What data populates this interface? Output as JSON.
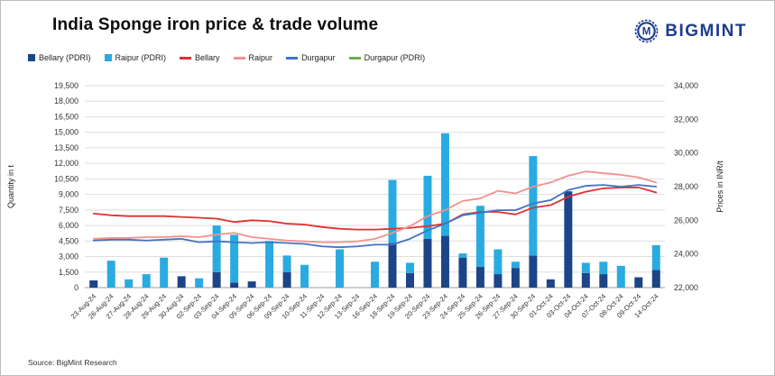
{
  "header": {
    "title": "India Sponge iron price & trade volume",
    "logo_text": "BIGMINT"
  },
  "legend": [
    {
      "label": "Bellary (PDRI)",
      "color": "#1c4587",
      "type": "bar"
    },
    {
      "label": "Raipur (PDRI)",
      "color": "#29abe2",
      "type": "bar"
    },
    {
      "label": "Bellary",
      "color": "#e03030",
      "type": "line"
    },
    {
      "label": "Raipur",
      "color": "#f2918c",
      "type": "line"
    },
    {
      "label": "Durgapur",
      "color": "#4472c4",
      "type": "line"
    },
    {
      "label": "Durgapur (PDRI)",
      "color": "#70ad47",
      "type": "line"
    }
  ],
  "source": "Source: BigMint Research",
  "chart_data": {
    "type": "combo: stacked bar (quantity) + line (prices)",
    "title": "India Sponge iron price & trade volume",
    "categories": [
      "23-Aug-24",
      "26-Aug-24",
      "27-Aug-24",
      "28-Aug-24",
      "29-Aug-24",
      "30-Aug-24",
      "02-Sep-24",
      "03-Sep-24",
      "04-Sep-24",
      "05-Sep-24",
      "06-Sep-24",
      "09-Sep-24",
      "10-Sep-24",
      "11-Sep-24",
      "12-Sep-24",
      "13-Sep-24",
      "16-Sep-24",
      "18-Sep-24",
      "19-Sep-24",
      "20-Sep-24",
      "23-Sep-24",
      "24-Sep-24",
      "25-Sep-24",
      "26-Sep-24",
      "27-Sep-24",
      "30-Sep-24",
      "01-Oct-24",
      "03-Oct-24",
      "04-Oct-24",
      "07-Oct-24",
      "08-Oct-24",
      "09-Oct-24",
      "14-Oct-24"
    ],
    "bar_series": [
      {
        "name": "Bellary (PDRI)",
        "color": "#1c4587",
        "values": [
          700,
          0,
          0,
          0,
          0,
          1100,
          0,
          1500,
          500,
          600,
          0,
          1500,
          0,
          0,
          0,
          0,
          0,
          4300,
          1400,
          4700,
          5000,
          2900,
          2000,
          1300,
          1900,
          3100,
          800,
          9300,
          1400,
          1300,
          0,
          1000,
          1700
        ]
      },
      {
        "name": "Raipur (PDRI)",
        "color": "#29abe2",
        "values": [
          0,
          2600,
          800,
          1300,
          2900,
          0,
          900,
          4500,
          4600,
          0,
          4500,
          1600,
          2200,
          0,
          3700,
          0,
          2500,
          6100,
          1000,
          6100,
          9900,
          400,
          5900,
          2400,
          600,
          9600,
          0,
          0,
          1000,
          1200,
          2100,
          0,
          2400
        ]
      }
    ],
    "line_series": [
      {
        "name": "Bellary",
        "color": "#e03030",
        "values": [
          26400,
          26300,
          26250,
          26250,
          26250,
          26200,
          26150,
          26100,
          25900,
          26000,
          25950,
          25800,
          25750,
          25600,
          25500,
          25450,
          25450,
          25500,
          25550,
          25650,
          25800,
          26350,
          26500,
          26500,
          26350,
          26750,
          26900,
          27400,
          27700,
          27900,
          27950,
          27950,
          27650
        ]
      },
      {
        "name": "Raipur",
        "color": "#f2918c",
        "values": [
          24900,
          24950,
          24950,
          25000,
          25000,
          25050,
          25000,
          25150,
          25250,
          25000,
          24900,
          24800,
          24750,
          24700,
          24700,
          24750,
          24900,
          25250,
          25650,
          26250,
          26600,
          27150,
          27300,
          27750,
          27600,
          28000,
          28250,
          28650,
          28900,
          28800,
          28700,
          28550,
          28250
        ]
      },
      {
        "name": "Durgapur",
        "color": "#4472c4",
        "values": [
          24800,
          24850,
          24850,
          24800,
          24850,
          24900,
          24700,
          24750,
          24700,
          24650,
          24700,
          24650,
          24600,
          24450,
          24400,
          24450,
          24550,
          24550,
          24900,
          25400,
          25800,
          26300,
          26450,
          26600,
          26600,
          27000,
          27200,
          27800,
          28050,
          28100,
          28000,
          28100,
          28000
        ]
      }
    ],
    "left_axis": {
      "label": "Quantity in t",
      "min": 0,
      "max": 19500,
      "step": 1500
    },
    "right_axis": {
      "label": "Prices in INR/t",
      "min": 22000,
      "max": 34000,
      "step": 2000
    },
    "grid": "horizontal",
    "legend_position": "top",
    "notes": "Durgapur (PDRI) appears in legend but has no visible bars"
  }
}
